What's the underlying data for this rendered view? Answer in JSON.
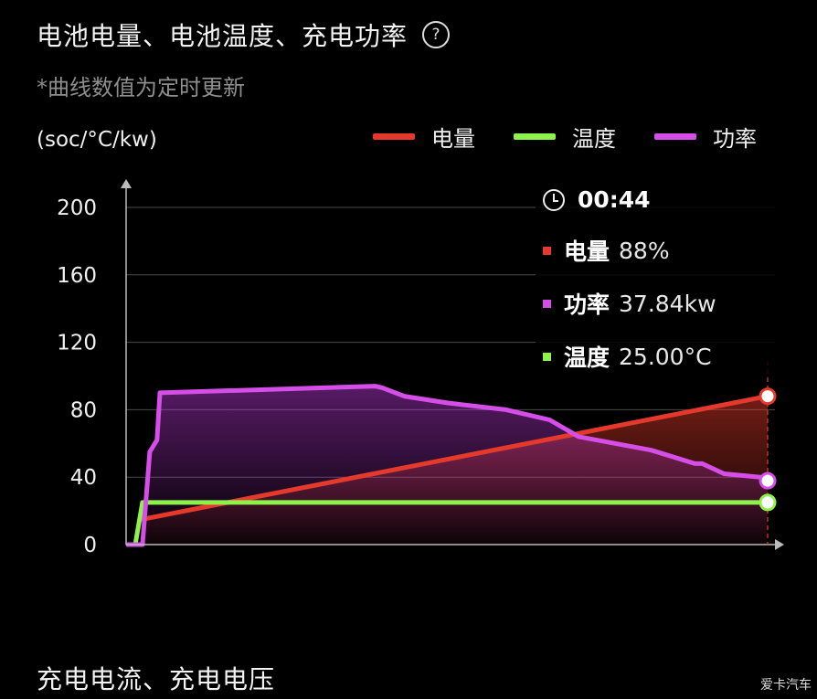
{
  "header": {
    "title": "电池电量、电池温度、充电功率",
    "help_icon": "?"
  },
  "subtitle": "*曲线数值为定时更新",
  "unit_label": "(soc/°C/kw)",
  "legend": [
    {
      "label": "电量",
      "color": "#e53a2b"
    },
    {
      "label": "温度",
      "color": "#8ef24b"
    },
    {
      "label": "功率",
      "color": "#d64ee8"
    }
  ],
  "tooltip": {
    "time": "00:44",
    "rows": [
      {
        "label": "电量",
        "value": "88%",
        "color": "#e53a2b"
      },
      {
        "label": "功率",
        "value": "37.84kw",
        "color": "#d64ee8"
      },
      {
        "label": "温度",
        "value": "25.00°C",
        "color": "#8ef24b"
      }
    ]
  },
  "chart_data": {
    "type": "line",
    "ylabel": "(soc/°C/kw)",
    "ylim": [
      0,
      200
    ],
    "yticks": [
      "0",
      "40",
      "80",
      "120",
      "160",
      "200"
    ],
    "grid": true,
    "legend_position": "top-right",
    "x_unit": "minutes",
    "xlim": [
      0,
      44
    ],
    "series": [
      {
        "name": "电量",
        "color": "#e53a2b",
        "x": [
          1,
          44
        ],
        "y": [
          15,
          88
        ]
      },
      {
        "name": "温度",
        "color": "#8ef24b",
        "x": [
          0,
          0.5,
          1,
          44
        ],
        "y": [
          0,
          0,
          25,
          25
        ]
      },
      {
        "name": "功率",
        "color": "#d64ee8",
        "x": [
          0,
          1,
          1.5,
          2,
          2.2,
          17,
          17.5,
          19,
          22,
          26,
          29,
          31,
          36,
          39,
          39.5,
          40,
          41,
          43.5,
          44
        ],
        "y": [
          0,
          0,
          55,
          62,
          90,
          94,
          93,
          88,
          84,
          80,
          74,
          64,
          56,
          48,
          48,
          46,
          42,
          40,
          37.84
        ]
      }
    ]
  },
  "section2_title": "充电电流、充电电压",
  "watermark": "爱卡汽车"
}
